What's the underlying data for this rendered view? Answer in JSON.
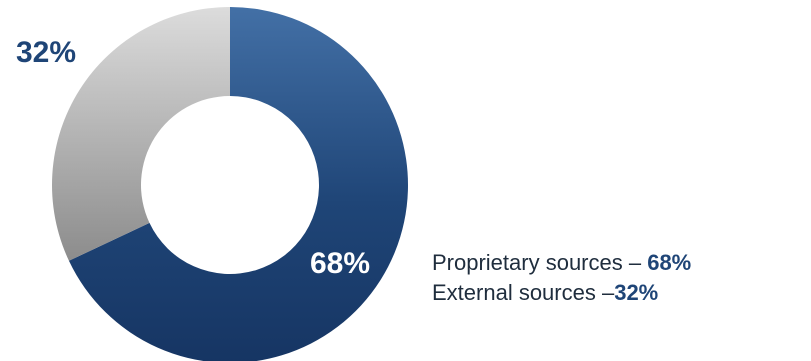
{
  "chart_data": {
    "type": "pie",
    "donut": true,
    "title": "",
    "categories": [
      "Proprietary sources",
      "External sources"
    ],
    "values": [
      68,
      32
    ],
    "data_labels": [
      "68%",
      "32%"
    ],
    "colors": {
      "Proprietary sources": "#1f4577",
      "External sources": "#a9a9a9"
    },
    "legend": {
      "placement": "bottom-right",
      "entries": [
        {
          "label": "Proprietary sources – ",
          "value": "68%"
        },
        {
          "label": "External sources –",
          "value": "32%"
        }
      ]
    }
  }
}
